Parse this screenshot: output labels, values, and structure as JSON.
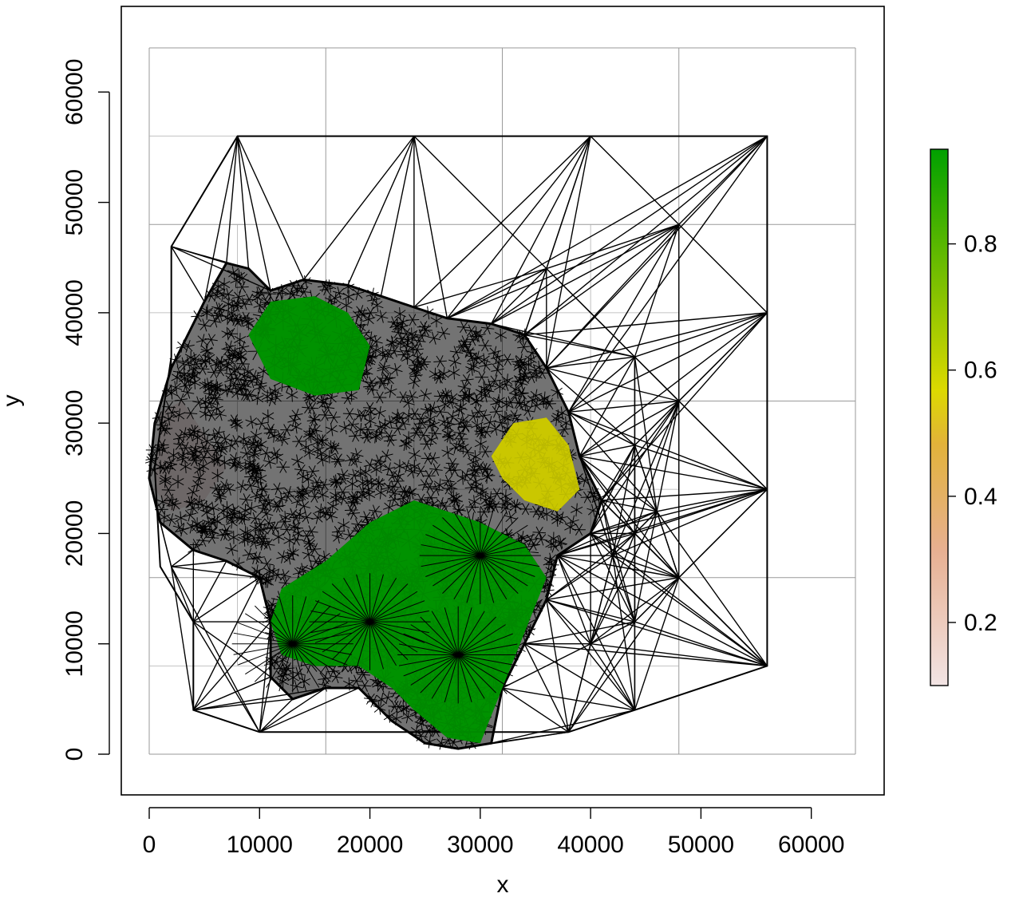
{
  "chart_data": {
    "type": "heatmap",
    "title": "",
    "xlabel": "x",
    "ylabel": "y",
    "xlim": [
      0,
      64000
    ],
    "ylim": [
      0,
      64000
    ],
    "x_ticks": [
      0,
      10000,
      20000,
      30000,
      40000,
      50000,
      60000
    ],
    "x_tick_labels": [
      "0",
      "10000",
      "20000",
      "30000",
      "40000",
      "50000",
      "60000"
    ],
    "y_ticks": [
      0,
      10000,
      20000,
      30000,
      40000,
      50000,
      60000
    ],
    "y_tick_labels": [
      "0",
      "10000",
      "20000",
      "30000",
      "40000",
      "50000",
      "60000"
    ],
    "colorbar": {
      "ticks": [
        0.2,
        0.4,
        0.6,
        0.8
      ],
      "tick_labels": [
        "0.2",
        "0.4",
        "0.6",
        "0.8"
      ],
      "range": [
        0.1,
        0.95
      ],
      "colors": [
        "#f2e4e4",
        "#e7b092",
        "#e2b23a",
        "#dcd900",
        "#7cc000",
        "#00a000"
      ]
    },
    "grid_lines_x": [
      0,
      16000,
      32000,
      48000,
      64000
    ],
    "grid_lines_y": [
      0,
      16000,
      32000,
      48000,
      64000
    ],
    "regions": [
      {
        "name": "north-green",
        "value": 0.9
      },
      {
        "name": "south-green",
        "value": 0.95
      },
      {
        "name": "east-yellow",
        "value": 0.65
      },
      {
        "name": "west-pink",
        "value": 0.15
      }
    ],
    "coarse_mesh_nodes": [
      [
        8000,
        56000
      ],
      [
        24000,
        56000
      ],
      [
        40000,
        56000
      ],
      [
        56000,
        56000
      ],
      [
        56000,
        40000
      ],
      [
        56000,
        24000
      ],
      [
        56000,
        8000
      ],
      [
        44000,
        36000
      ],
      [
        44000,
        28000
      ],
      [
        44000,
        12000
      ],
      [
        44000,
        4000
      ],
      [
        36000,
        44000
      ],
      [
        48000,
        48000
      ],
      [
        48000,
        32000
      ],
      [
        48000,
        16000
      ],
      [
        40000,
        10000
      ],
      [
        38000,
        2000
      ],
      [
        10000,
        2000
      ],
      [
        4000,
        4000
      ],
      [
        4000,
        12000
      ],
      [
        2000,
        46000
      ],
      [
        2000,
        17000
      ],
      [
        42000,
        18000
      ],
      [
        46000,
        22000
      ],
      [
        44000,
        20000
      ]
    ]
  }
}
